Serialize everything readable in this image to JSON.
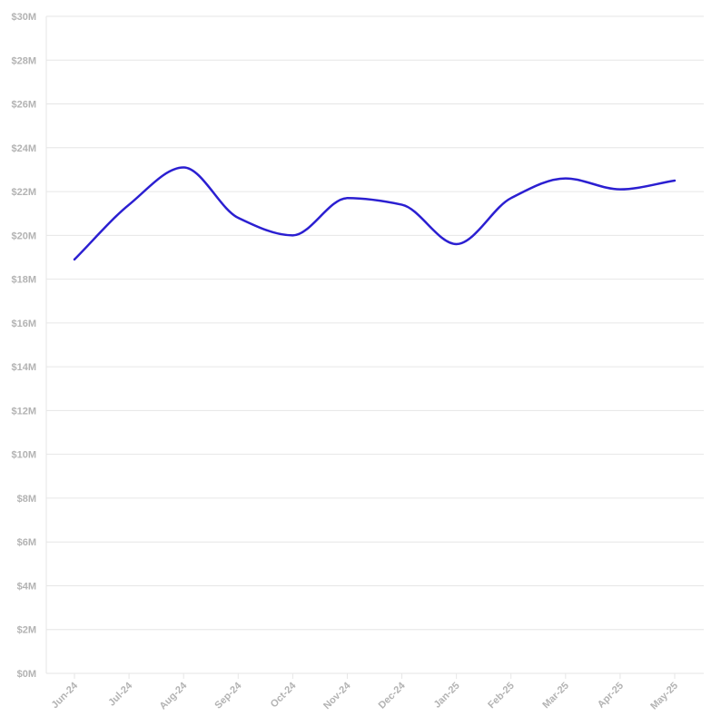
{
  "chart_data": {
    "type": "line",
    "title": "",
    "xlabel": "",
    "ylabel": "",
    "categories": [
      "Jun-24",
      "Jul-24",
      "Aug-24",
      "Sep-24",
      "Oct-24",
      "Nov-24",
      "Dec-24",
      "Jan-25",
      "Feb-25",
      "Mar-25",
      "Apr-25",
      "May-25"
    ],
    "series": [
      {
        "values": [
          18.9,
          21.4,
          23.1,
          20.8,
          20.0,
          21.7,
          21.4,
          19.6,
          21.7,
          22.6,
          22.1,
          22.5
        ]
      }
    ],
    "ylim": [
      0,
      30
    ],
    "y_ticks": [
      0,
      2,
      4,
      6,
      8,
      10,
      12,
      14,
      16,
      18,
      20,
      22,
      24,
      26,
      28,
      30
    ],
    "y_tick_labels": [
      "$0M",
      "$2M",
      "$4M",
      "$6M",
      "$8M",
      "$10M",
      "$12M",
      "$14M",
      "$16M",
      "$18M",
      "$20M",
      "$22M",
      "$24M",
      "$26M",
      "$28M",
      "$30M"
    ],
    "grid": true,
    "legend": "none",
    "line_color": "#2b1fd1",
    "grid_color": "#e6e6e6",
    "tick_label_color": "#b3b3b3"
  }
}
